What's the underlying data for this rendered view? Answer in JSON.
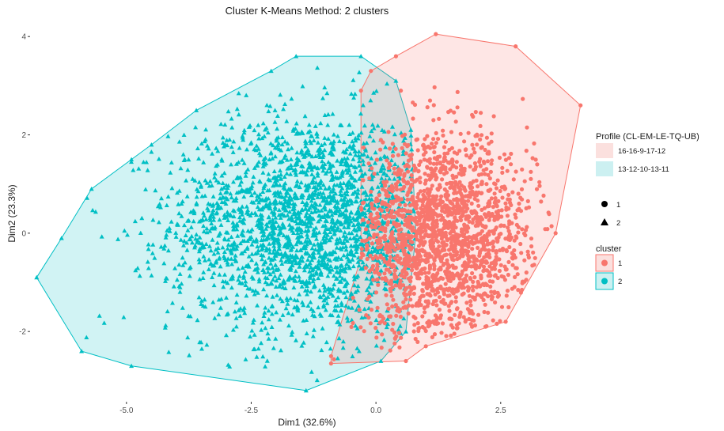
{
  "chart_data": {
    "type": "scatter",
    "title": "Cluster K-Means Method: 2 clusters",
    "xlabel": "Dim1 (32.6%)",
    "ylabel": "Dim2 (23.3%)",
    "xlim": [
      -6.9,
      4.2
    ],
    "ylim": [
      -3.3,
      4.1
    ],
    "x_ticks": [
      -5.0,
      -2.5,
      0.0,
      2.5
    ],
    "x_tick_labels": [
      "-5.0",
      "-2.5",
      "0.0",
      "2.5"
    ],
    "y_ticks": [
      -2,
      0,
      2,
      4
    ],
    "y_tick_labels": [
      "-2",
      "0",
      "2",
      "4"
    ],
    "grid": false,
    "legend_position": "right",
    "series": [
      {
        "name": "1",
        "profile": "16-16-9-17-12",
        "marker": "circle",
        "color": "#F8766D",
        "fill_color": "#FBE0DE",
        "hull": [
          [
            1.2,
            4.05
          ],
          [
            2.8,
            3.8
          ],
          [
            4.1,
            2.6
          ],
          [
            3.6,
            0.0
          ],
          [
            2.6,
            -1.8
          ],
          [
            1.0,
            -2.3
          ],
          [
            0.6,
            -2.6
          ],
          [
            -0.9,
            -2.65
          ],
          [
            -0.9,
            -2.5
          ],
          [
            -0.3,
            -0.5
          ],
          [
            -0.3,
            2.9
          ],
          [
            -0.1,
            3.3
          ],
          [
            0.4,
            3.6
          ]
        ],
        "center": [
          1.3,
          -0.1
        ],
        "spread": [
          0.9,
          1.0
        ],
        "n_points": 1900
      },
      {
        "name": "2",
        "profile": "13-12-10-13-11",
        "marker": "triangle",
        "color": "#00BFC4",
        "fill_color": "#CCF0F1",
        "hull": [
          [
            -1.6,
            3.6
          ],
          [
            -0.3,
            3.6
          ],
          [
            0.4,
            3.1
          ],
          [
            0.7,
            2.1
          ],
          [
            0.8,
            0.0
          ],
          [
            0.6,
            -2.0
          ],
          [
            0.1,
            -2.6
          ],
          [
            -1.4,
            -3.2
          ],
          [
            -4.9,
            -2.7
          ],
          [
            -5.9,
            -2.4
          ],
          [
            -6.8,
            -0.9
          ],
          [
            -6.3,
            -0.1
          ],
          [
            -5.7,
            0.9
          ],
          [
            -4.9,
            1.5
          ],
          [
            -4.5,
            1.8
          ],
          [
            -3.6,
            2.5
          ],
          [
            -2.1,
            3.3
          ]
        ],
        "center": [
          -1.3,
          0.2
        ],
        "spread": [
          1.4,
          1.1
        ],
        "n_points": 2300
      }
    ],
    "legends": [
      {
        "title": "Profile (CL-EM-LE-TQ-UB)",
        "entries": [
          "16-16-9-17-12",
          "13-12-10-13-11"
        ]
      },
      {
        "title": "",
        "entries": [
          "1",
          "2"
        ]
      },
      {
        "title": "cluster",
        "entries": [
          "1",
          "2"
        ]
      }
    ]
  }
}
